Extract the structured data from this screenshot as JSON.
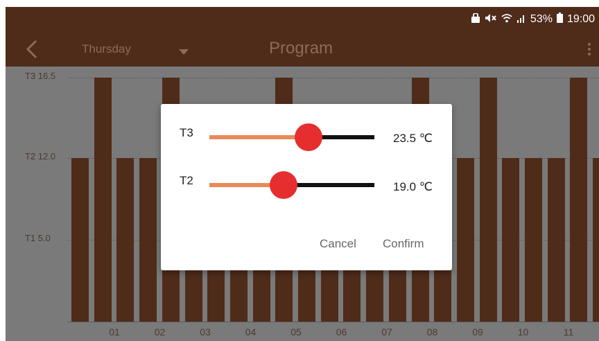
{
  "status_bar": {
    "battery_percent": "53%",
    "time": "19:00"
  },
  "app_bar": {
    "day": "Thursday",
    "title": "Program"
  },
  "chart_data": {
    "type": "bar",
    "y_levels": [
      {
        "label": "T3 16.5",
        "value": 16.5
      },
      {
        "label": "T2 12.0",
        "value": 12.0
      },
      {
        "label": "T1 5.0",
        "value": 5.0
      }
    ],
    "ylim": [
      0,
      16.5
    ],
    "x_ticks": [
      "01",
      "02",
      "03",
      "04",
      "05",
      "06",
      "07",
      "08",
      "09",
      "10",
      "11"
    ],
    "values": [
      12.0,
      16.5,
      12.0,
      12.0,
      16.5,
      12.0,
      12.0,
      12.0,
      12.0,
      16.5,
      12.0,
      12.0,
      12.0,
      12.0,
      12.0,
      16.5,
      12.0,
      12.0,
      16.5,
      12.0,
      12.0,
      12.0,
      16.5,
      12.0
    ]
  },
  "dialog": {
    "rows": [
      {
        "label": "T3",
        "value": "23.5 ℃",
        "fraction": 0.6
      },
      {
        "label": "T2",
        "value": "19.0 ℃",
        "fraction": 0.45
      }
    ],
    "cancel": "Cancel",
    "confirm": "Confirm"
  }
}
